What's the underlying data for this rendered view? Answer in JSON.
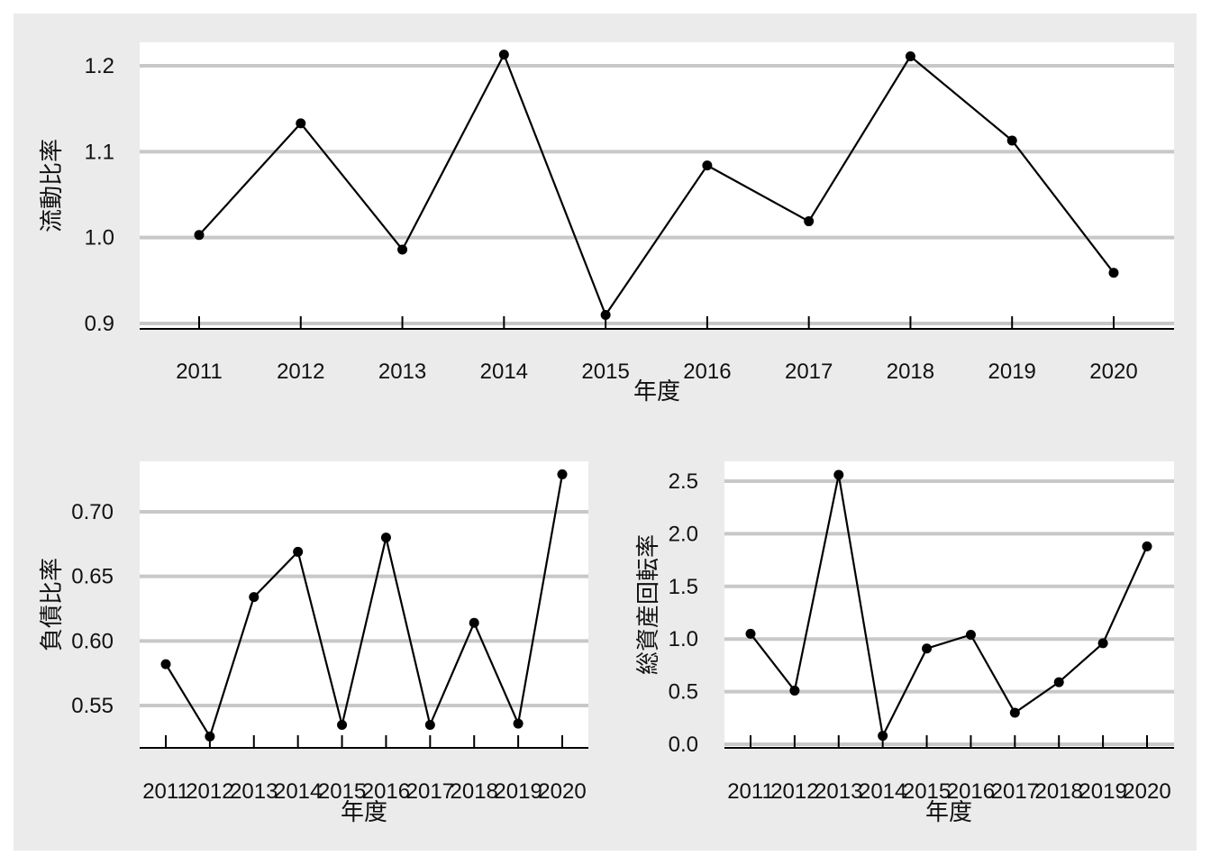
{
  "figure": {
    "background": "#ebebeb",
    "panel_background": "#ffffff",
    "grid_color": "#c8c8c8",
    "line_color": "#000000"
  },
  "chart_data": [
    {
      "type": "line",
      "xlabel": "年度",
      "ylabel": "流動比率",
      "categories": [
        "2011",
        "2012",
        "2013",
        "2014",
        "2015",
        "2016",
        "2017",
        "2018",
        "2019",
        "2020"
      ],
      "values": [
        1.003,
        1.133,
        0.986,
        1.213,
        0.91,
        1.084,
        1.019,
        1.211,
        1.113,
        0.959
      ],
      "yticks": [
        "0.9",
        "1.0",
        "1.1",
        "1.2"
      ],
      "ylim": [
        0.9,
        1.228
      ],
      "grid": true
    },
    {
      "type": "line",
      "xlabel": "年度",
      "ylabel": "負債比率",
      "categories": [
        "2011",
        "2012",
        "2013",
        "2014",
        "2015",
        "2016",
        "2017",
        "2018",
        "2019",
        "2020"
      ],
      "values": [
        0.582,
        0.526,
        0.634,
        0.669,
        0.535,
        0.68,
        0.535,
        0.614,
        0.536,
        0.729
      ],
      "yticks": [
        "0.55",
        "0.60",
        "0.65",
        "0.70"
      ],
      "ylim": [
        0.517,
        0.74
      ],
      "grid": true
    },
    {
      "type": "line",
      "xlabel": "年度",
      "ylabel": "総資産回転率",
      "categories": [
        "2011",
        "2012",
        "2013",
        "2014",
        "2015",
        "2016",
        "2017",
        "2018",
        "2019",
        "2020"
      ],
      "values": [
        1.05,
        0.51,
        2.56,
        0.08,
        0.91,
        1.04,
        0.3,
        0.59,
        0.96,
        1.88
      ],
      "yticks": [
        "0.0",
        "0.5",
        "1.0",
        "1.5",
        "2.0",
        "2.5"
      ],
      "ylim": [
        -0.03,
        2.68
      ],
      "grid": true
    }
  ]
}
